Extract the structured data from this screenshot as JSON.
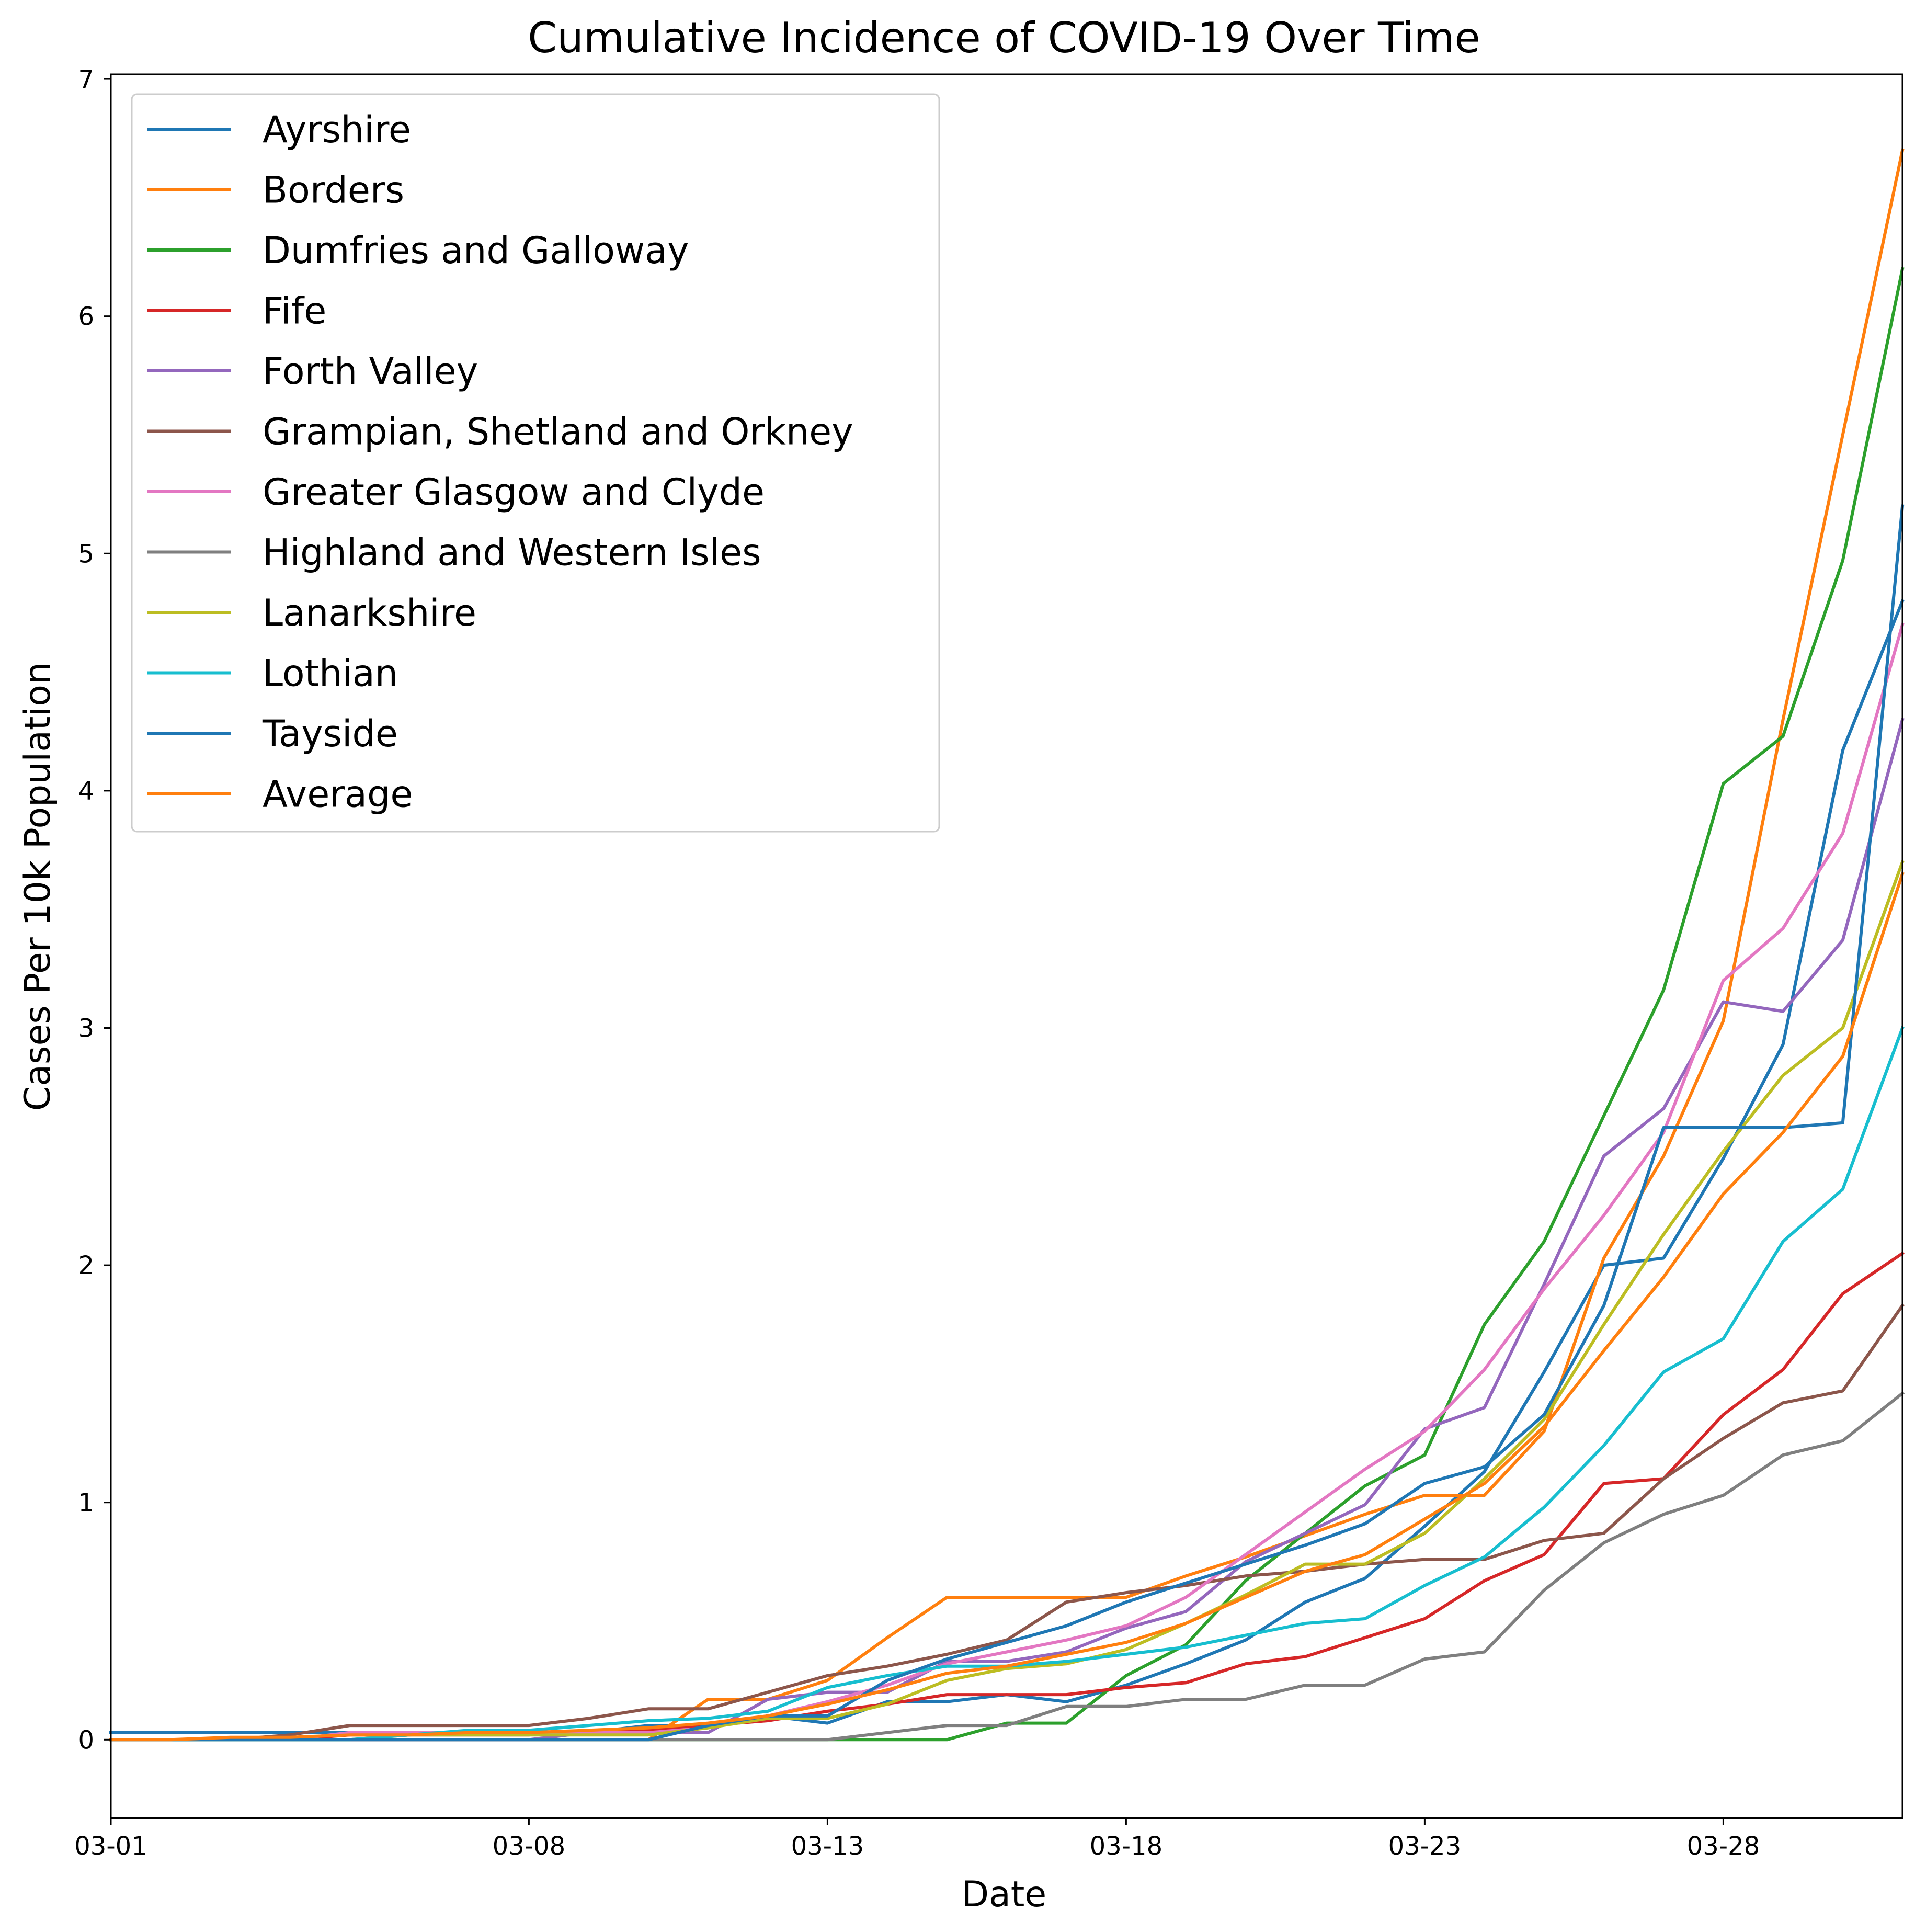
{
  "chart_data": {
    "type": "line",
    "title": "Cumulative Incidence of COVID-19 Over Time",
    "xlabel": "Date",
    "ylabel": "Cases Per 10k Population",
    "x": [
      "03-01",
      "03-02",
      "03-03",
      "03-04",
      "03-05",
      "03-06",
      "03-07",
      "03-08",
      "03-09",
      "03-10",
      "03-11",
      "03-12",
      "03-13",
      "03-14",
      "03-15",
      "03-16",
      "03-17",
      "03-18",
      "03-19",
      "03-20",
      "03-21",
      "03-22",
      "03-23",
      "03-24",
      "03-25",
      "03-26",
      "03-27",
      "03-28",
      "03-29",
      "03-30",
      "03-31"
    ],
    "x_ticks": [
      "03-01",
      "03-08",
      "03-13",
      "03-18",
      "03-23",
      "03-28"
    ],
    "y_ticks": [
      0,
      1,
      2,
      3,
      4,
      5,
      6,
      7
    ],
    "ylim": [
      -0.33,
      7.02
    ],
    "legend_position": "upper left",
    "series": [
      {
        "name": "Ayrshire",
        "color": "#1f77b4",
        "values": [
          0.03,
          0.03,
          0.03,
          0.03,
          0.03,
          0.03,
          0.03,
          0.03,
          0.03,
          0.06,
          0.06,
          0.1,
          0.07,
          0.16,
          0.16,
          0.19,
          0.16,
          0.23,
          0.32,
          0.42,
          0.58,
          0.68,
          0.9,
          1.13,
          1.55,
          2.0,
          2.03,
          2.45,
          2.93,
          4.17,
          4.8
        ]
      },
      {
        "name": "Borders",
        "color": "#ff7f0e",
        "values": [
          0.0,
          0.0,
          0.0,
          0.0,
          0.0,
          0.0,
          0.0,
          0.0,
          0.0,
          0.0,
          0.17,
          0.17,
          0.25,
          0.43,
          0.6,
          0.6,
          0.6,
          0.6,
          0.69,
          0.77,
          0.86,
          0.95,
          1.03,
          1.03,
          1.3,
          2.03,
          2.46,
          3.03,
          4.3,
          5.5,
          6.7
        ]
      },
      {
        "name": "Dumfries and Galloway",
        "color": "#2ca02c",
        "values": [
          0.0,
          0.0,
          0.0,
          0.0,
          0.0,
          0.0,
          0.0,
          0.0,
          0.0,
          0.0,
          0.0,
          0.0,
          0.0,
          0.0,
          0.0,
          0.07,
          0.07,
          0.27,
          0.4,
          0.67,
          0.87,
          1.07,
          1.2,
          1.75,
          2.1,
          2.63,
          3.16,
          4.03,
          4.23,
          4.97,
          6.2
        ]
      },
      {
        "name": "Fife",
        "color": "#d62728",
        "values": [
          0.0,
          0.0,
          0.0,
          0.0,
          0.02,
          0.02,
          0.02,
          0.02,
          0.04,
          0.04,
          0.06,
          0.08,
          0.12,
          0.15,
          0.19,
          0.19,
          0.19,
          0.22,
          0.24,
          0.32,
          0.35,
          0.43,
          0.51,
          0.67,
          0.78,
          1.08,
          1.1,
          1.37,
          1.56,
          1.88,
          2.05
        ]
      },
      {
        "name": "Forth Valley",
        "color": "#9467bd",
        "values": [
          0.0,
          0.0,
          0.0,
          0.0,
          0.0,
          0.0,
          0.0,
          0.0,
          0.03,
          0.03,
          0.03,
          0.17,
          0.2,
          0.2,
          0.33,
          0.33,
          0.37,
          0.47,
          0.54,
          0.75,
          0.87,
          0.99,
          1.31,
          1.4,
          1.92,
          2.46,
          2.66,
          3.11,
          3.07,
          3.37,
          4.3
        ]
      },
      {
        "name": "Grampian, Shetland and Orkney",
        "color": "#8c564b",
        "values": [
          0.0,
          0.0,
          0.0,
          0.02,
          0.06,
          0.06,
          0.06,
          0.06,
          0.09,
          0.13,
          0.13,
          0.2,
          0.27,
          0.31,
          0.36,
          0.42,
          0.58,
          0.62,
          0.65,
          0.69,
          0.71,
          0.74,
          0.76,
          0.76,
          0.84,
          0.87,
          1.1,
          1.27,
          1.42,
          1.47,
          1.83
        ]
      },
      {
        "name": "Greater Glasgow and Clyde",
        "color": "#e377c2",
        "values": [
          0.0,
          0.0,
          0.0,
          0.0,
          0.03,
          0.03,
          0.03,
          0.03,
          0.03,
          0.03,
          0.05,
          0.1,
          0.16,
          0.23,
          0.32,
          0.37,
          0.42,
          0.48,
          0.6,
          0.78,
          0.96,
          1.14,
          1.3,
          1.56,
          1.9,
          2.21,
          2.56,
          3.2,
          3.42,
          3.82,
          4.7
        ]
      },
      {
        "name": "Highland and Western Isles",
        "color": "#7f7f7f",
        "values": [
          0.0,
          0.0,
          0.0,
          0.0,
          0.0,
          0.0,
          0.0,
          0.0,
          0.0,
          0.0,
          0.0,
          0.0,
          0.0,
          0.03,
          0.06,
          0.06,
          0.14,
          0.14,
          0.17,
          0.17,
          0.23,
          0.23,
          0.34,
          0.37,
          0.63,
          0.83,
          0.95,
          1.03,
          1.2,
          1.26,
          1.46
        ]
      },
      {
        "name": "Lanarkshire",
        "color": "#bcbd22",
        "values": [
          0.0,
          0.0,
          0.0,
          0.0,
          0.0,
          0.02,
          0.02,
          0.02,
          0.02,
          0.02,
          0.05,
          0.09,
          0.09,
          0.15,
          0.25,
          0.3,
          0.32,
          0.38,
          0.49,
          0.61,
          0.74,
          0.74,
          0.87,
          1.1,
          1.35,
          1.75,
          2.13,
          2.48,
          2.8,
          3.0,
          3.7
        ]
      },
      {
        "name": "Lothian",
        "color": "#17becf",
        "values": [
          0.0,
          0.0,
          0.0,
          0.0,
          0.0,
          0.02,
          0.04,
          0.04,
          0.06,
          0.08,
          0.09,
          0.12,
          0.22,
          0.27,
          0.31,
          0.31,
          0.33,
          0.36,
          0.39,
          0.44,
          0.49,
          0.51,
          0.65,
          0.77,
          0.98,
          1.24,
          1.55,
          1.69,
          2.1,
          2.32,
          3.0
        ]
      },
      {
        "name": "Tayside",
        "color": "#1f77b4",
        "values": [
          0.0,
          0.0,
          0.0,
          0.0,
          0.0,
          0.0,
          0.0,
          0.0,
          0.0,
          0.0,
          0.06,
          0.1,
          0.1,
          0.25,
          0.34,
          0.41,
          0.48,
          0.58,
          0.66,
          0.74,
          0.82,
          0.91,
          1.08,
          1.15,
          1.37,
          1.83,
          2.58,
          2.58,
          2.58,
          2.6,
          5.2
        ]
      },
      {
        "name": "Average",
        "color": "#ff7f0e",
        "values": [
          0.0,
          0.0,
          0.01,
          0.01,
          0.02,
          0.02,
          0.03,
          0.03,
          0.04,
          0.05,
          0.07,
          0.1,
          0.15,
          0.21,
          0.28,
          0.31,
          0.36,
          0.41,
          0.49,
          0.6,
          0.71,
          0.78,
          0.93,
          1.08,
          1.32,
          1.64,
          1.95,
          2.3,
          2.56,
          2.88,
          3.65
        ]
      }
    ]
  }
}
